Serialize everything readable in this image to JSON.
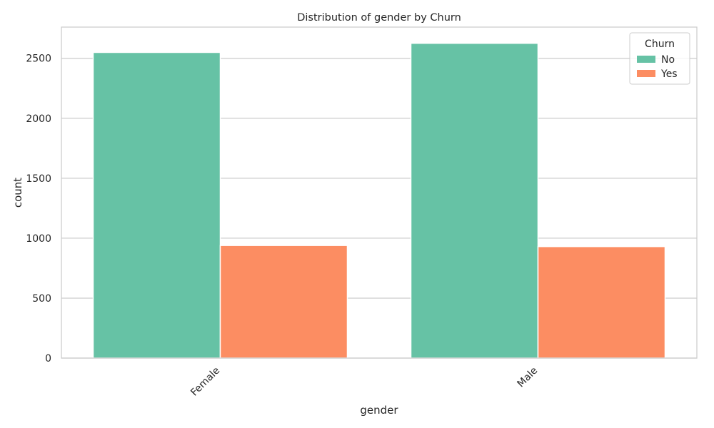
{
  "chart_data": {
    "type": "bar",
    "title": "Distribution of gender by Churn",
    "xlabel": "gender",
    "ylabel": "count",
    "categories": [
      "Female",
      "Male"
    ],
    "series": [
      {
        "name": "No",
        "values": [
          2549,
          2625
        ],
        "color": "#66c2a5"
      },
      {
        "name": "Yes",
        "values": [
          939,
          930
        ],
        "color": "#fc8d62"
      }
    ],
    "ylim": [
      0,
      2760
    ],
    "yticks": [
      0,
      500,
      1000,
      1500,
      2000,
      2500
    ],
    "ytick_labels": [
      "0",
      "500",
      "1000",
      "1500",
      "2000",
      "2500"
    ],
    "grid": true,
    "x_tick_rotation": 45,
    "legend": {
      "title": "Churn",
      "placement": "top-right",
      "entries": [
        "No",
        "Yes"
      ]
    }
  }
}
